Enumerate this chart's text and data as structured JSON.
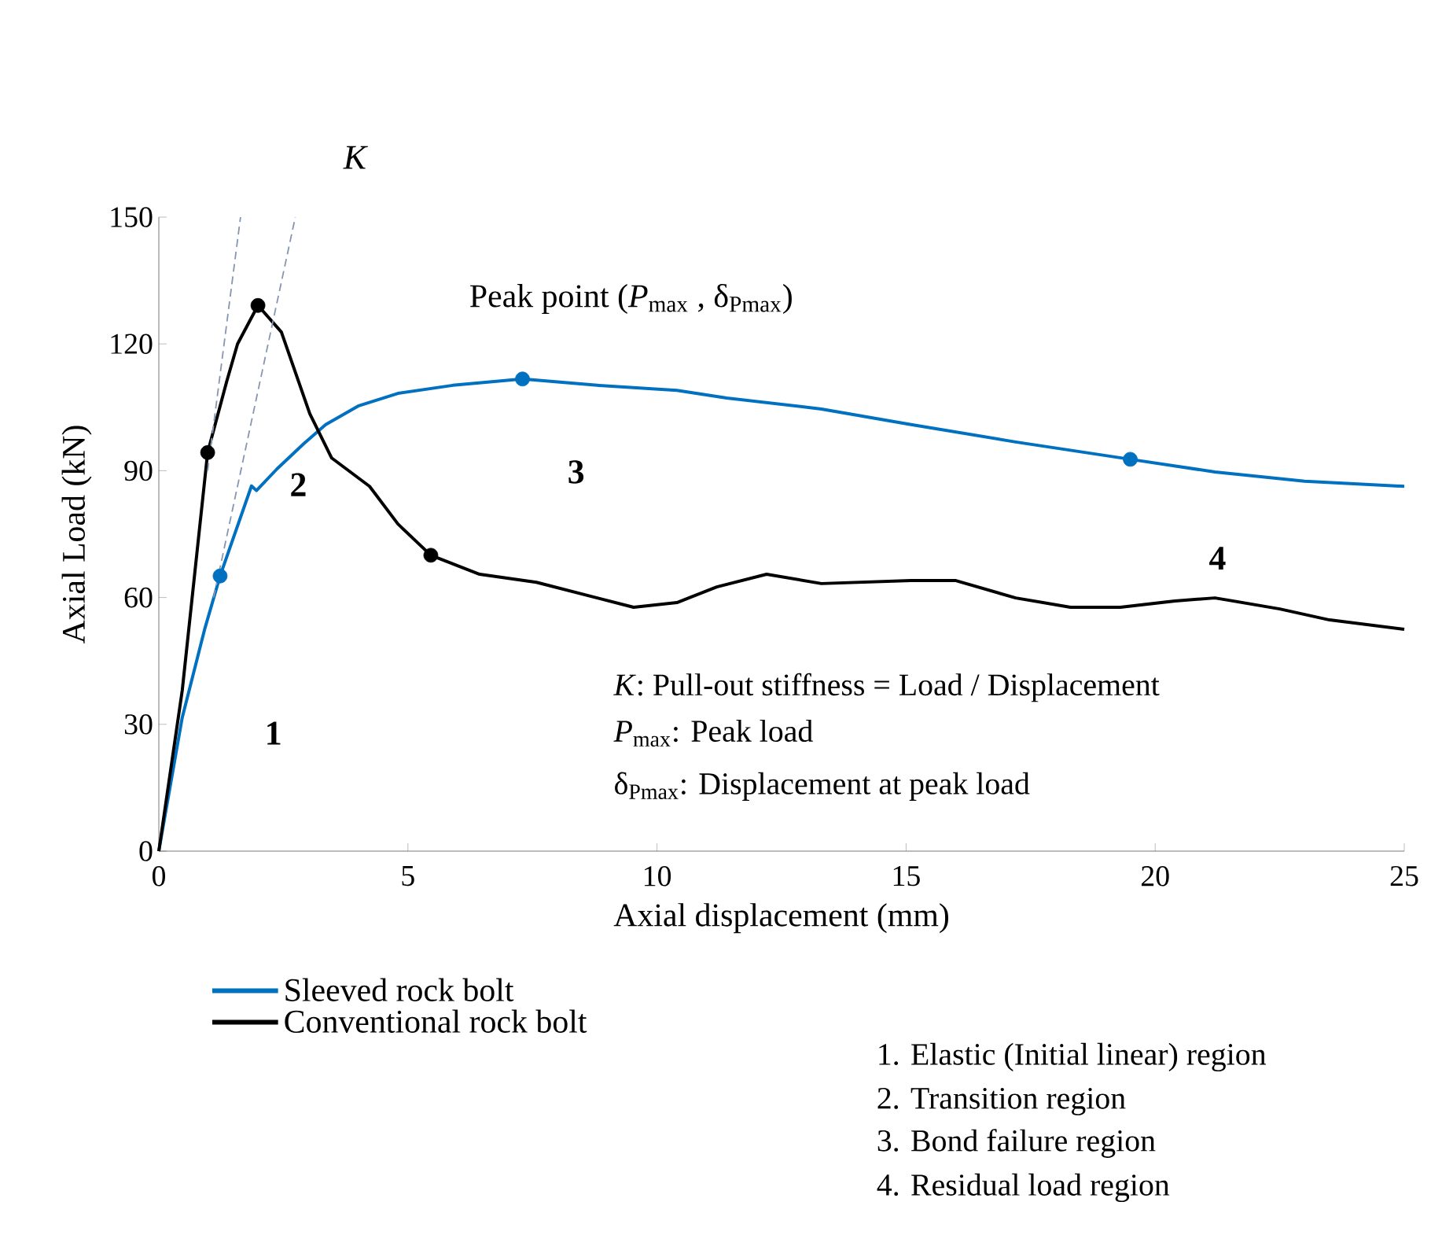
{
  "chart_data": {
    "type": "line",
    "xlabel": "Axial displacement (mm)",
    "ylabel": "Axial Load (kN)",
    "xlim": [
      0,
      25
    ],
    "ylim": [
      0,
      150
    ],
    "xticks": [
      0,
      5,
      10,
      15,
      20,
      25
    ],
    "yticks": [
      0,
      30,
      60,
      90,
      120,
      150
    ],
    "grid": false,
    "legend": "bottom left",
    "marker": "none",
    "series": [
      {
        "name": "Sleeved rock bolt",
        "color": "#0070c0",
        "x": [
          0,
          0.47,
          0.92,
          1.23,
          1.86,
          1.96,
          2.37,
          2.91,
          3.35,
          4.0,
          4.8,
          5.9,
          7.3,
          8.8,
          10.4,
          11.4,
          13.3,
          15.1,
          17.2,
          19.5,
          21.2,
          23,
          25
        ],
        "values": [
          0,
          31.6,
          52.5,
          65.1,
          86.4,
          85.3,
          90.4,
          96.4,
          100.9,
          105.3,
          108.3,
          110.2,
          111.7,
          110.2,
          109,
          107.2,
          104.6,
          100.9,
          96.8,
          92.7,
          89.7,
          87.5,
          86.3
        ]
      },
      {
        "name": "Conventional rock bolt",
        "color": "#000000",
        "x": [
          0,
          0.47,
          0.98,
          1.36,
          1.58,
          1.99,
          2.46,
          3.03,
          3.47,
          4.23,
          4.8,
          5.46,
          6.44,
          7.58,
          8.8,
          9.53,
          10.4,
          11.2,
          12.2,
          13.3,
          15.1,
          16.0,
          17.2,
          18.3,
          19.3,
          20.4,
          21.2,
          22.5,
          23.5,
          25
        ],
        "values": [
          0,
          38,
          94.3,
          111,
          120,
          129.1,
          122.8,
          103.5,
          93,
          86.3,
          77.4,
          70,
          65.5,
          63.6,
          59.9,
          57.7,
          58.8,
          62.5,
          65.5,
          63.3,
          64,
          64,
          59.9,
          57.7,
          57.7,
          59.2,
          59.9,
          57.3,
          54.7,
          52.5
        ]
      },
      {
        "type": "scatter",
        "marker": "circle",
        "color": "#0070c0",
        "x": [
          1.23,
          7.3,
          19.5
        ],
        "values": [
          65.1,
          111.7,
          92.7
        ]
      },
      {
        "type": "scatter",
        "marker": "circle",
        "color": "#000000",
        "x": [
          0.98,
          1.99,
          5.46
        ],
        "values": [
          94.3,
          129.1,
          70
        ]
      },
      {
        "type": "line",
        "line_style": "dashed",
        "color": "#8496b0",
        "x": [
          0.98,
          1.64
        ],
        "values": [
          90,
          150
        ]
      },
      {
        "type": "line",
        "line_style": "dashed",
        "color": "#8496b0",
        "x": [
          1.1,
          2.74
        ],
        "values": [
          60,
          150
        ]
      }
    ],
    "annotations": [
      "*K*",
      "Peak point (*P*$_{max}$ , δ$_{Pmax}$)",
      "1",
      "2",
      "3",
      "4",
      "*K*: Pull-out stiffness = Load / Displacement",
      "*P*$_{max}$: Peak load",
      "δ$_{Pmax}$: Displacement at peak load",
      "1. Elastic (Initial linear) region",
      "2. Transition region",
      "3. Bond failure region",
      "4. Residual load region"
    ]
  }
}
